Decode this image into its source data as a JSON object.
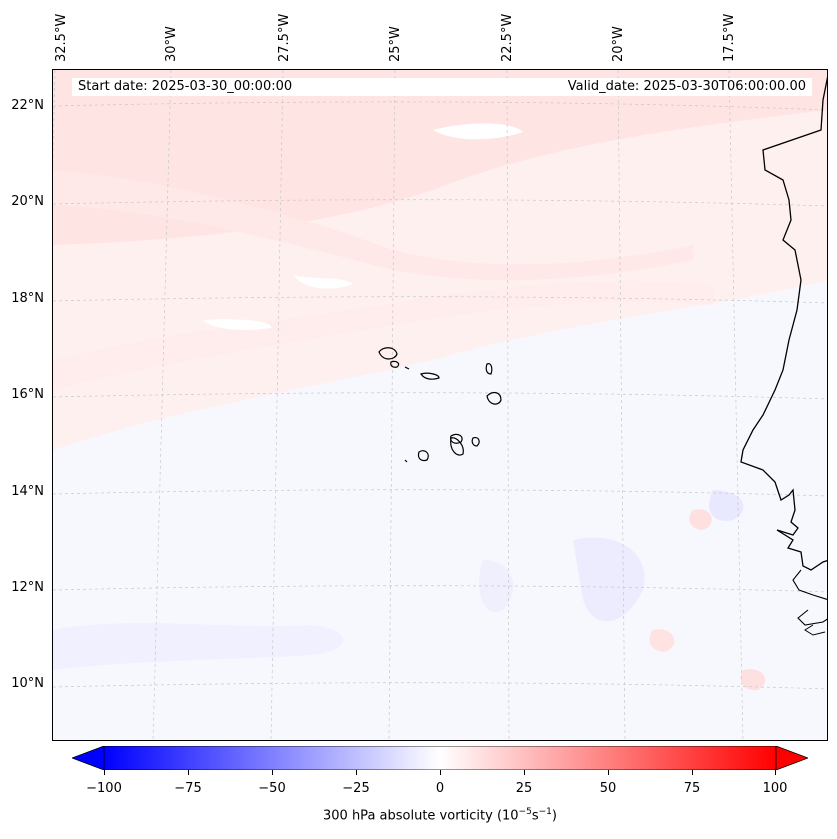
{
  "map": {
    "start_date": "Start date: 2025-03-30_00:00:00",
    "valid_date": "Valid_date: 2025-03-30T06:00:00.00",
    "lon_labels": [
      "32.5°W",
      "30°W",
      "27.5°W",
      "25°W",
      "22.5°W",
      "20°W",
      "17.5°W"
    ],
    "lat_labels": [
      "22°N",
      "20°N",
      "18°N",
      "16°N",
      "14°N",
      "12°N",
      "10°N"
    ],
    "extent": {
      "lon_min": -33.0,
      "lon_max": -15.3,
      "lat_min": 9.0,
      "lat_max": 22.7
    },
    "field": "300 hPa absolute vorticity",
    "colormap": "bwr",
    "features": [
      "Cape Verde islands",
      "West African coastline"
    ]
  },
  "colorbar": {
    "label_text": "300 hPa absolute vorticity (10",
    "label_exp1": "−5",
    "label_mid": "s",
    "label_exp2": "−1",
    "label_end": ")",
    "ticks": [
      "−100",
      "−75",
      "−50",
      "−25",
      "0",
      "25",
      "50",
      "75",
      "100"
    ],
    "range": [
      -100,
      100
    ],
    "min_color": "#0000ff",
    "max_color": "#ff0000",
    "extend": "both"
  }
}
